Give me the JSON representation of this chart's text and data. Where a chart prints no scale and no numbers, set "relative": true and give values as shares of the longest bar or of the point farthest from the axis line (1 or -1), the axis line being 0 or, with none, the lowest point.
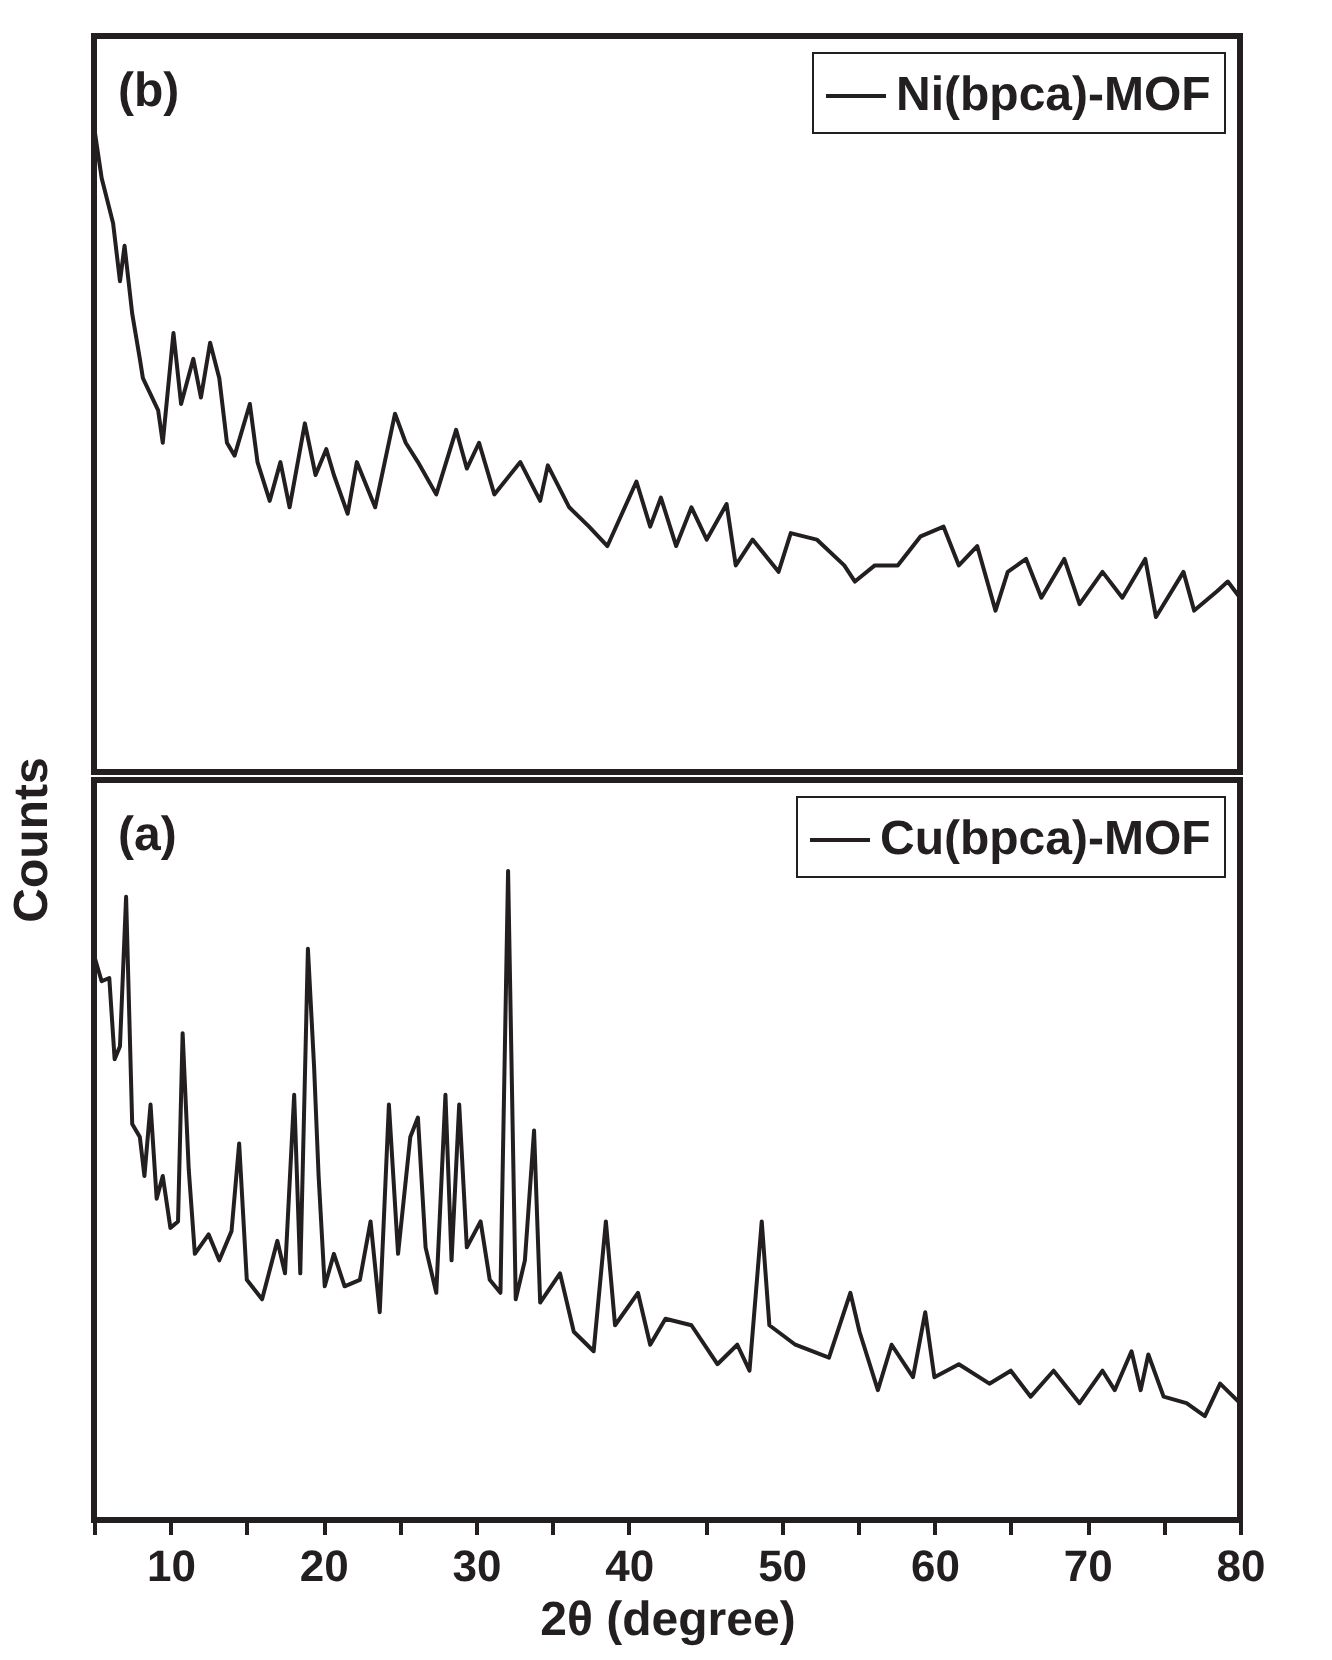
{
  "chart_data": [
    {
      "type": "line",
      "relative": true,
      "ylabel": "Counts",
      "xlim": [
        5,
        80
      ],
      "tick_labels": false,
      "legend": "top right",
      "annotations": [
        "(b)"
      ],
      "series": [
        {
          "name": "Ni(bpca)-MOF",
          "color": "#231f20",
          "x": [
            5,
            5.5,
            6.25,
            6.7,
            7.0,
            7.5,
            8.0,
            8.2,
            9.2,
            9.5,
            10.2,
            10.7,
            11.5,
            12.0,
            12.6,
            13.2,
            13.7,
            14.2,
            15.2,
            15.7,
            16.5,
            17.2,
            17.8,
            18.8,
            19.5,
            20.2,
            20.7,
            21.6,
            22.2,
            23.4,
            24.7,
            25.4,
            26.2,
            27.4,
            28.7,
            29.4,
            30.2,
            31.2,
            32.9,
            34.2,
            34.7,
            36.1,
            37.4,
            38.6,
            40.5,
            41.4,
            42.1,
            43.1,
            44.1,
            45.1,
            46.4,
            47.0,
            48.1,
            49.8,
            50.6,
            52.3,
            54.1,
            54.8,
            56.1,
            57.6,
            59.1,
            60.6,
            61.6,
            62.8,
            64.0,
            64.8,
            66.0,
            67.0,
            68.5,
            69.5,
            71.0,
            72.3,
            73.8,
            74.5,
            76.3,
            77.0,
            78.5,
            79.2,
            80
          ],
          "values": [
            1.0,
            0.92,
            0.85,
            0.76,
            0.815,
            0.71,
            0.64,
            0.61,
            0.56,
            0.51,
            0.68,
            0.57,
            0.64,
            0.58,
            0.665,
            0.61,
            0.51,
            0.49,
            0.57,
            0.48,
            0.42,
            0.48,
            0.41,
            0.54,
            0.46,
            0.5,
            0.46,
            0.4,
            0.48,
            0.41,
            0.555,
            0.51,
            0.48,
            0.43,
            0.53,
            0.47,
            0.51,
            0.43,
            0.48,
            0.42,
            0.475,
            0.41,
            0.38,
            0.35,
            0.45,
            0.38,
            0.425,
            0.35,
            0.41,
            0.36,
            0.415,
            0.32,
            0.36,
            0.31,
            0.37,
            0.36,
            0.32,
            0.295,
            0.32,
            0.32,
            0.365,
            0.38,
            0.32,
            0.35,
            0.25,
            0.31,
            0.33,
            0.27,
            0.33,
            0.26,
            0.31,
            0.27,
            0.33,
            0.24,
            0.31,
            0.25,
            0.28,
            0.295,
            0.27
          ]
        }
      ]
    },
    {
      "type": "line",
      "relative": true,
      "xlabel": "2θ (degree)",
      "xlim": [
        5,
        80
      ],
      "tick_labels": "x",
      "legend": "top right",
      "annotations": [
        "(a)"
      ],
      "xticks": [
        {
          "value": 5,
          "label": null
        },
        10,
        {
          "value": 15,
          "label": null
        },
        20,
        {
          "value": 25,
          "label": null
        },
        30,
        {
          "value": 35,
          "label": null
        },
        40,
        {
          "value": 45,
          "label": null
        },
        50,
        {
          "value": 55,
          "label": null
        },
        60,
        {
          "value": 65,
          "label": null
        },
        70,
        {
          "value": 75,
          "label": null
        },
        80
      ],
      "series": [
        {
          "name": "Cu(bpca)-MOF",
          "color": "#231f20",
          "x": [
            5,
            5.5,
            6.0,
            6.35,
            6.7,
            7.1,
            7.5,
            8.0,
            8.3,
            8.7,
            9.1,
            9.5,
            10.0,
            10.5,
            10.8,
            11.2,
            11.6,
            12.5,
            13.2,
            14.0,
            14.5,
            15.0,
            16.0,
            17.0,
            17.5,
            18.1,
            18.5,
            19.0,
            19.4,
            19.7,
            20.1,
            20.7,
            21.4,
            22.4,
            23.1,
            23.7,
            24.3,
            24.9,
            25.7,
            26.2,
            26.7,
            27.4,
            28.0,
            28.4,
            28.9,
            29.4,
            30.3,
            30.9,
            31.6,
            32.1,
            32.6,
            33.2,
            33.8,
            34.2,
            35.5,
            36.4,
            37.7,
            38.5,
            39.1,
            40.6,
            41.4,
            42.4,
            44.1,
            45.8,
            47.1,
            47.9,
            48.7,
            49.2,
            50.9,
            53.1,
            54.5,
            55.1,
            56.3,
            57.2,
            58.6,
            59.4,
            60.0,
            61.6,
            63.6,
            65.0,
            66.3,
            67.8,
            69.5,
            71.0,
            71.8,
            72.9,
            73.5,
            74.0,
            75.0,
            76.5,
            77.7,
            78.7,
            80
          ],
          "values": [
            0.87,
            0.83,
            0.835,
            0.71,
            0.73,
            0.96,
            0.61,
            0.59,
            0.53,
            0.64,
            0.495,
            0.53,
            0.45,
            0.46,
            0.75,
            0.54,
            0.41,
            0.44,
            0.4,
            0.445,
            0.58,
            0.37,
            0.34,
            0.43,
            0.38,
            0.655,
            0.38,
            0.88,
            0.7,
            0.53,
            0.36,
            0.41,
            0.36,
            0.37,
            0.46,
            0.32,
            0.64,
            0.41,
            0.59,
            0.62,
            0.42,
            0.35,
            0.655,
            0.4,
            0.64,
            0.42,
            0.46,
            0.37,
            0.35,
            1.0,
            0.34,
            0.4,
            0.6,
            0.335,
            0.38,
            0.29,
            0.26,
            0.46,
            0.3,
            0.35,
            0.27,
            0.31,
            0.3,
            0.24,
            0.27,
            0.23,
            0.46,
            0.3,
            0.27,
            0.25,
            0.35,
            0.29,
            0.2,
            0.27,
            0.22,
            0.32,
            0.22,
            0.24,
            0.21,
            0.23,
            0.19,
            0.23,
            0.18,
            0.23,
            0.2,
            0.26,
            0.2,
            0.255,
            0.19,
            0.18,
            0.16,
            0.21,
            0.18
          ]
        }
      ]
    }
  ]
}
